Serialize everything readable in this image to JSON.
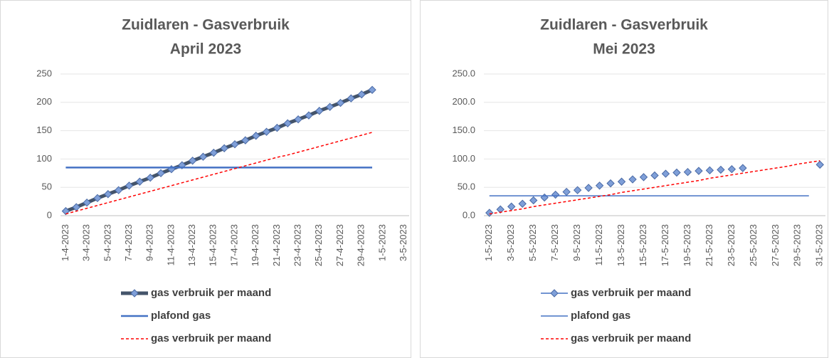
{
  "chart_data": [
    {
      "type": "line",
      "title": "Zuidlaren - Gasverbruik",
      "subtitle": "April 2023",
      "categories": [
        "1-4-2023",
        null,
        "3-4-2023",
        null,
        "5-4-2023",
        null,
        "7-4-2023",
        null,
        "9-4-2023",
        null,
        "11-4-2023",
        null,
        "13-4-2023",
        null,
        "15-4-2023",
        null,
        "17-4-2023",
        null,
        "19-4-2023",
        null,
        "21-4-2023",
        null,
        "23-4-2023",
        null,
        "25-4-2023",
        null,
        "27-4-2023",
        null,
        "29-4-2023",
        null,
        "1-5-2023",
        null,
        "3-5-2023"
      ],
      "ylim": [
        0,
        250
      ],
      "yticks": [
        0,
        50,
        100,
        150,
        200,
        250
      ],
      "grid": true,
      "series": [
        {
          "name": "gas verbruik per maand",
          "color": "#44546a",
          "line_width": 5,
          "markers": true,
          "marker_color": "#7f9fd8",
          "dash": false,
          "values": [
            8,
            15,
            23,
            31,
            38,
            45,
            53,
            60,
            67,
            75,
            82,
            89,
            97,
            104,
            111,
            119,
            126,
            133,
            141,
            148,
            155,
            163,
            170,
            177,
            185,
            192,
            199,
            207,
            214,
            222,
            null,
            null,
            null
          ]
        },
        {
          "name": "plafond gas",
          "color": "#4472c4",
          "line_width": 2.5,
          "markers": false,
          "dash": false,
          "values": [
            85,
            85,
            85,
            85,
            85,
            85,
            85,
            85,
            85,
            85,
            85,
            85,
            85,
            85,
            85,
            85,
            85,
            85,
            85,
            85,
            85,
            85,
            85,
            85,
            85,
            85,
            85,
            85,
            85,
            85,
            null,
            null,
            null
          ]
        },
        {
          "name": "gas verbruik per maand",
          "color": "#ff0000",
          "line_width": 1.5,
          "markers": false,
          "dash": true,
          "values": [
            3,
            8,
            13,
            18,
            23,
            28,
            33,
            38,
            43,
            48,
            53,
            58,
            63,
            68,
            73,
            78,
            83,
            88,
            93,
            98,
            103,
            107,
            112,
            117,
            122,
            127,
            132,
            137,
            142,
            147,
            null,
            null,
            null
          ]
        }
      ]
    },
    {
      "type": "line",
      "title": "Zuidlaren - Gasverbruik",
      "subtitle": "Mei 2023",
      "categories": [
        "1-5-2023",
        null,
        "3-5-2023",
        null,
        "5-5-2023",
        null,
        "7-5-2023",
        null,
        "9-5-2023",
        null,
        "11-5-2023",
        null,
        "13-5-2023",
        null,
        "15-5-2023",
        null,
        "17-5-2023",
        null,
        "19-5-2023",
        null,
        "21-5-2023",
        null,
        "23-5-2023",
        null,
        "25-5-2023",
        null,
        "27-5-2023",
        null,
        "29-5-2023",
        null,
        "31-5-2023"
      ],
      "ylim": [
        0,
        250
      ],
      "yticks": [
        {
          "value": 0,
          "label": "0.0"
        },
        {
          "value": 50,
          "label": "50.0"
        },
        {
          "value": 100,
          "label": "100.0"
        },
        {
          "value": 150,
          "label": "150.0"
        },
        {
          "value": 200,
          "label": "200.0"
        },
        {
          "value": 250,
          "label": "250.0"
        }
      ],
      "grid": true,
      "series": [
        {
          "name": "gas verbruik per maand",
          "color": "#4472c4",
          "line_width": 0,
          "markers": true,
          "marker_color": "#7f9fd8",
          "dash": false,
          "values": [
            5,
            11,
            16,
            21,
            27,
            32,
            37,
            42,
            45,
            49,
            53,
            57,
            60,
            64,
            68,
            71,
            74,
            76,
            77,
            79,
            80,
            81,
            82,
            84,
            null,
            null,
            null,
            null,
            null,
            null,
            90
          ]
        },
        {
          "name": "plafond gas",
          "color": "#4472c4",
          "line_width": 1.5,
          "markers": false,
          "dash": false,
          "values": [
            35,
            35,
            35,
            35,
            35,
            35,
            35,
            35,
            35,
            35,
            35,
            35,
            35,
            35,
            35,
            35,
            35,
            35,
            35,
            35,
            35,
            35,
            35,
            35,
            35,
            35,
            35,
            35,
            35,
            35,
            null
          ]
        },
        {
          "name": "gas verbruik per maand",
          "color": "#ff0000",
          "line_width": 1.5,
          "markers": false,
          "dash": true,
          "values": [
            3,
            6,
            9,
            12,
            16,
            19,
            22,
            25,
            28,
            31,
            34,
            37,
            41,
            44,
            47,
            50,
            53,
            56,
            59,
            62,
            66,
            69,
            72,
            75,
            78,
            81,
            84,
            87,
            91,
            94,
            97
          ]
        }
      ]
    }
  ]
}
